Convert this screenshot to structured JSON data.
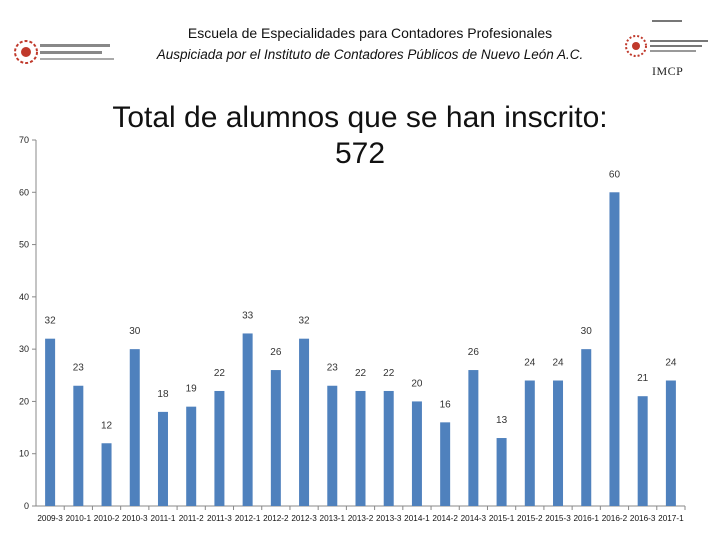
{
  "header": {
    "institution": "Escuela de Especialidades para Contadores Profesionales",
    "subtitle": "Auspiciada por el Instituto de Contadores Públicos de Nuevo León A.C.",
    "logo_right_text": "IMCP"
  },
  "chart_data": {
    "type": "bar",
    "title": "Total de alumnos que se han inscrito:",
    "title_total": "572",
    "categories": [
      "2009-3",
      "2010-1",
      "2010-2",
      "2010-3",
      "2011-1",
      "2011-2",
      "2011-3",
      "2012-1",
      "2012-2",
      "2012-3",
      "2013-1",
      "2013-2",
      "2013-3",
      "2014-1",
      "2014-2",
      "2014-3",
      "2015-1",
      "2015-2",
      "2015-3",
      "2016-1",
      "2016-2",
      "2016-3",
      "2017-1"
    ],
    "values": [
      32,
      23,
      12,
      30,
      18,
      19,
      22,
      33,
      26,
      32,
      23,
      22,
      22,
      20,
      16,
      26,
      13,
      24,
      24,
      30,
      60,
      21,
      24
    ],
    "ylim": [
      0,
      70
    ],
    "yticks": [
      "0",
      "10",
      "20",
      "30",
      "40",
      "50",
      "60",
      "70"
    ],
    "bar_color": "#4f81bd",
    "grid": false,
    "data_labels": true
  }
}
